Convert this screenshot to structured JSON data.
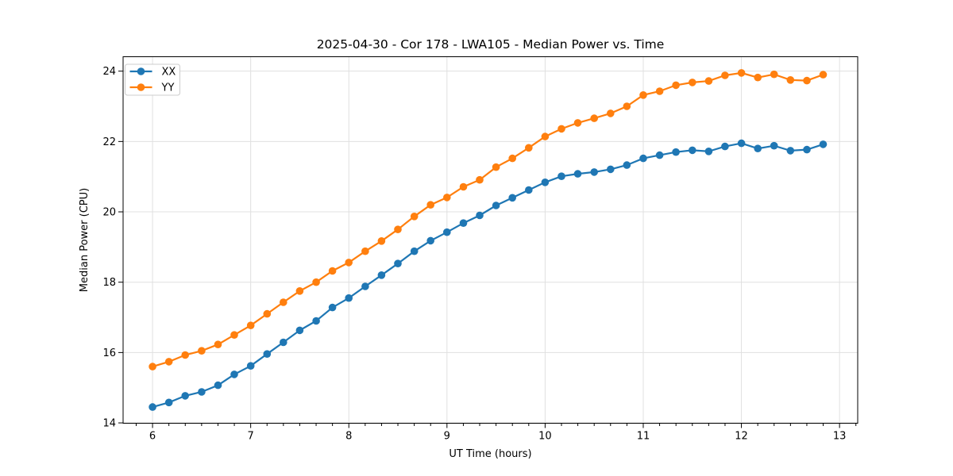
{
  "chart_data": {
    "type": "line",
    "title": "2025-04-30 - Cor 178 - LWA105 - Median Power vs. Time",
    "xlabel": "UT Time (hours)",
    "ylabel": "Median Power (CPU)",
    "xlim": [
      5.7,
      13.185
    ],
    "ylim": [
      13.99,
      24.41
    ],
    "xticks": [
      6,
      7,
      8,
      9,
      10,
      11,
      12,
      13
    ],
    "yticks": [
      14,
      16,
      18,
      20,
      22,
      24
    ],
    "x_minor_step": 0.1666667,
    "grid": true,
    "legend_position": "upper left",
    "marker": "circle",
    "background_color": "#ffffff",
    "grid_color": "#e0e0e0",
    "x": [
      6.0,
      6.167,
      6.333,
      6.5,
      6.667,
      6.833,
      7.0,
      7.167,
      7.333,
      7.5,
      7.667,
      7.833,
      8.0,
      8.167,
      8.333,
      8.5,
      8.667,
      8.833,
      9.0,
      9.167,
      9.333,
      9.5,
      9.667,
      9.833,
      10.0,
      10.167,
      10.333,
      10.5,
      10.667,
      10.833,
      11.0,
      11.167,
      11.333,
      11.5,
      11.667,
      11.833,
      12.0,
      12.167,
      12.333,
      12.5,
      12.667,
      12.833
    ],
    "series": [
      {
        "name": "XX",
        "color": "#1f77b4",
        "values": [
          14.45,
          14.58,
          14.77,
          14.88,
          15.07,
          15.38,
          15.62,
          15.96,
          16.29,
          16.63,
          16.9,
          17.28,
          17.55,
          17.88,
          18.2,
          18.53,
          18.88,
          19.18,
          19.42,
          19.68,
          19.9,
          20.18,
          20.4,
          20.62,
          20.84,
          21.01,
          21.08,
          21.13,
          21.21,
          21.33,
          21.52,
          21.61,
          21.7,
          21.75,
          21.72,
          21.86,
          21.95,
          21.8,
          21.88,
          21.74,
          21.77,
          21.92
        ]
      },
      {
        "name": "YY",
        "color": "#ff7f0e",
        "values": [
          15.6,
          15.74,
          15.93,
          16.05,
          16.23,
          16.5,
          16.77,
          17.1,
          17.43,
          17.75,
          18.0,
          18.32,
          18.56,
          18.88,
          19.17,
          19.5,
          19.87,
          20.2,
          20.41,
          20.71,
          20.91,
          21.27,
          21.52,
          21.82,
          22.14,
          22.36,
          22.53,
          22.66,
          22.8,
          23.0,
          23.32,
          23.43,
          23.6,
          23.68,
          23.72,
          23.88,
          23.95,
          23.82,
          23.91,
          23.75,
          23.73,
          23.9
        ]
      }
    ]
  }
}
